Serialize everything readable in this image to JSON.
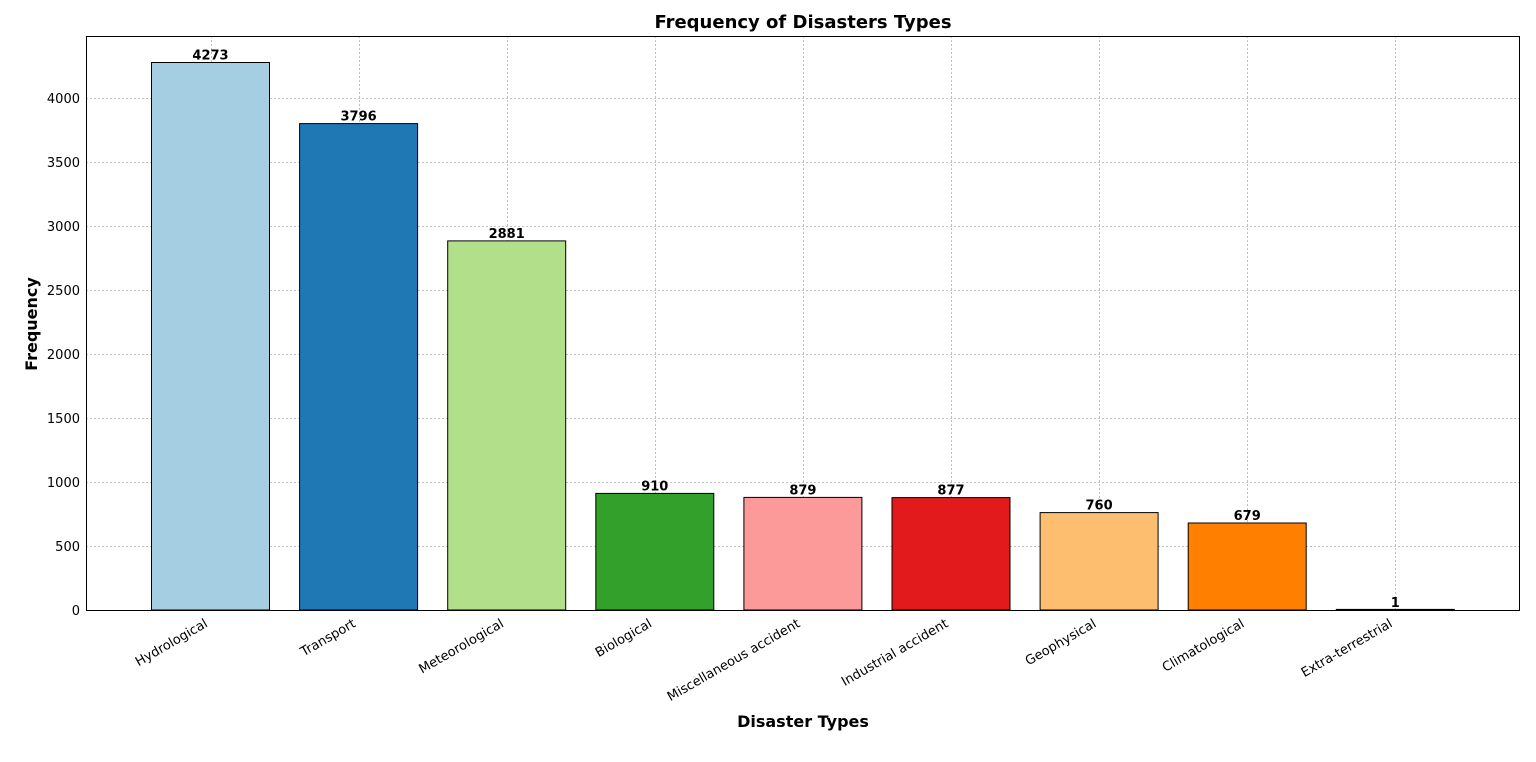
{
  "chart_data": {
    "type": "bar",
    "title": "Frequency of Disasters Types",
    "xlabel": "Disaster Types",
    "ylabel": "Frequency",
    "categories": [
      "Hydrological",
      "Transport",
      "Meteorological",
      "Biological",
      "Miscellaneous accident",
      "Industrial accident",
      "Geophysical",
      "Climatological",
      "Extra-terrestrial"
    ],
    "values": [
      4273,
      3796,
      2881,
      910,
      879,
      877,
      760,
      679,
      1
    ],
    "colors": [
      "#a6cee3",
      "#1f78b4",
      "#b2df8a",
      "#33a02c",
      "#fb9a99",
      "#e31a1c",
      "#fdbf6f",
      "#ff7f00",
      "#cab2d6"
    ],
    "ylim": [
      0,
      4480
    ],
    "yticks": [
      0,
      500,
      1000,
      1500,
      2000,
      2500,
      3000,
      3500,
      4000
    ],
    "grid": true,
    "data_labels": true,
    "xtick_rotation": 30
  }
}
